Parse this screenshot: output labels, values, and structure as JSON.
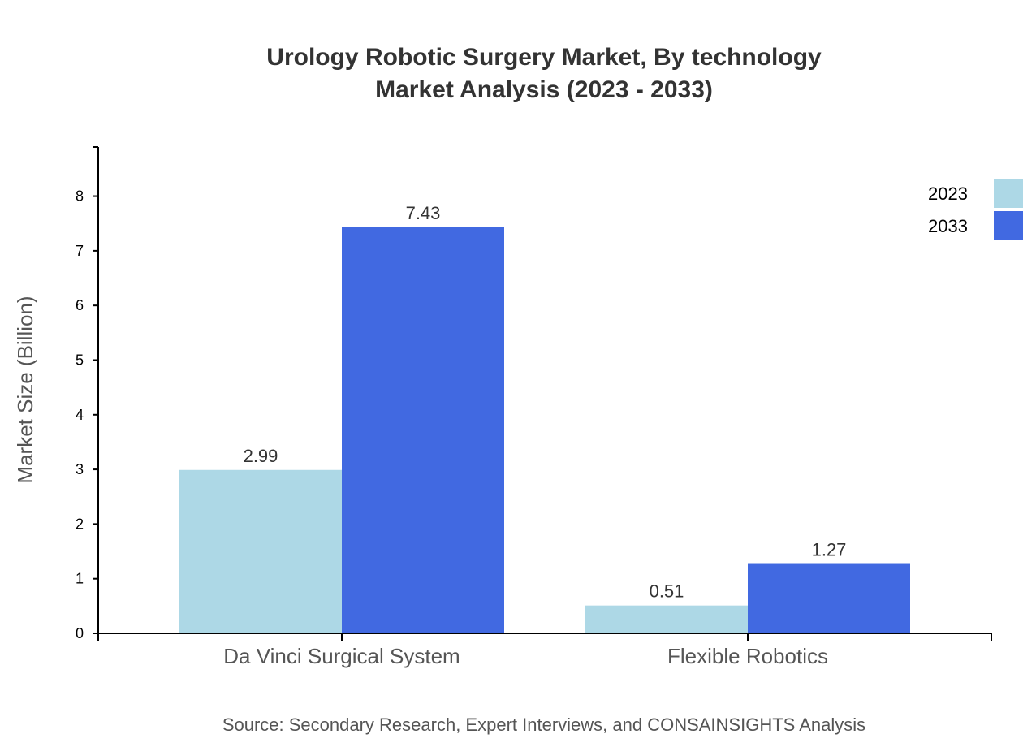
{
  "chart_data": {
    "type": "bar",
    "title": "Urology Robotic Surgery Market, By technology",
    "subtitle": "Market Analysis (2023 - 2033)",
    "categories": [
      "Da Vinci Surgical System",
      "Flexible Robotics"
    ],
    "series": [
      {
        "name": "2023",
        "values": [
          2.99,
          0.51
        ],
        "color": "#add8e6"
      },
      {
        "name": "2033",
        "values": [
          7.43,
          1.27
        ],
        "color": "#4169e1"
      }
    ],
    "xlabel": "",
    "ylabel": "Market Size (Billion)",
    "ylim": [
      0,
      8.9
    ],
    "yticks": [
      0,
      1,
      2,
      3,
      4,
      5,
      6,
      7,
      8
    ],
    "grid": false,
    "legend": "top-right",
    "source": "Source: Secondary Research, Expert Interviews, and CONSAINSIGHTS Analysis"
  }
}
